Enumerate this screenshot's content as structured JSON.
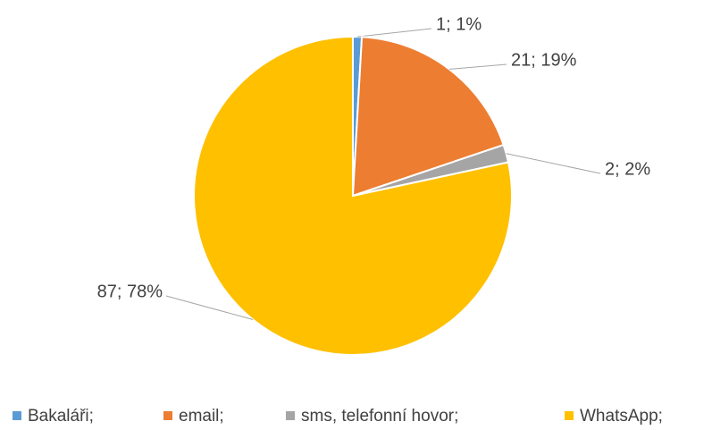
{
  "chart_data": {
    "type": "pie",
    "categories": [
      "Bakaláři;",
      "email;",
      "sms, telefonní hovor;",
      "WhatsApp;"
    ],
    "values": [
      1,
      21,
      2,
      87
    ],
    "value_labels": [
      "1; 1%",
      "21; 19%",
      "2; 2%",
      "87; 78%"
    ],
    "colors": [
      "#5b9bd5",
      "#ed7d31",
      "#a5a5a5",
      "#ffc000"
    ]
  }
}
